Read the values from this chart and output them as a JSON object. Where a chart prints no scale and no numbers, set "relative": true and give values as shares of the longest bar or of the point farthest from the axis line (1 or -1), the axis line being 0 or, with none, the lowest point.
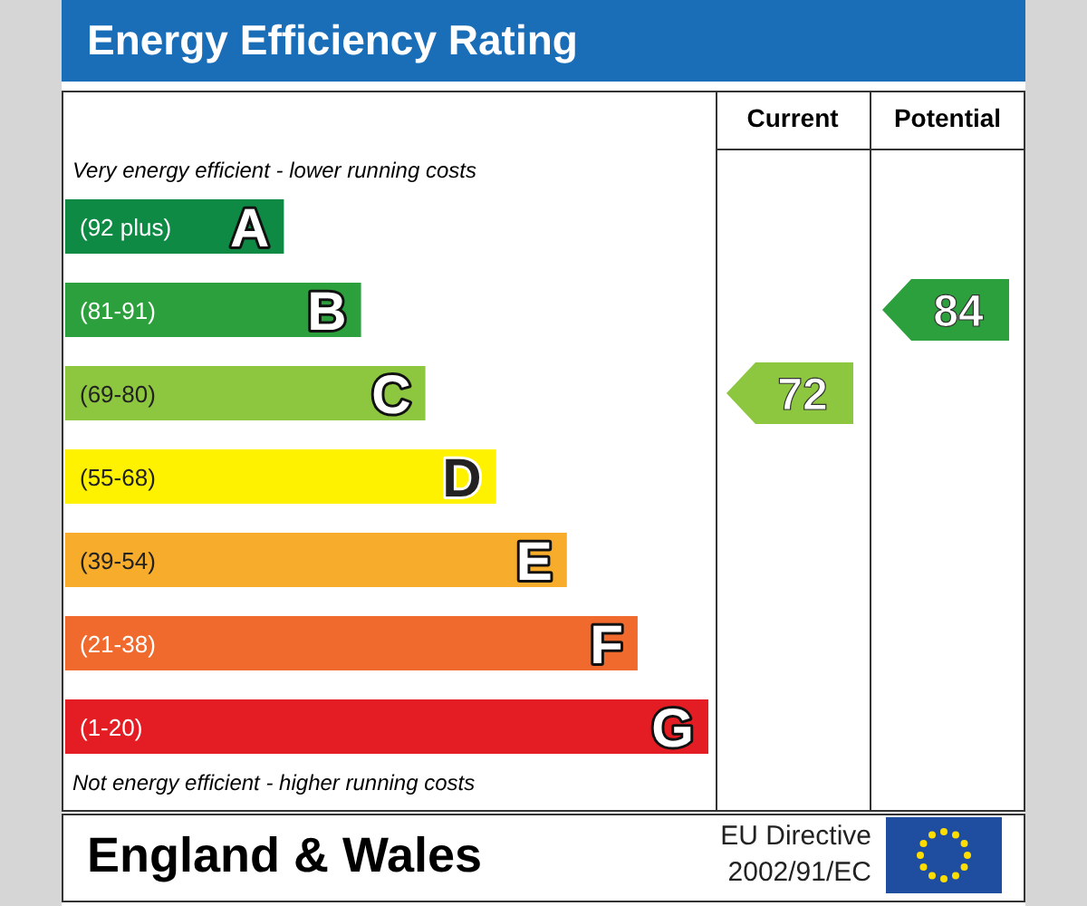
{
  "chart_data": {
    "type": "bar",
    "orientation": "horizontal",
    "relative": true,
    "title": "Energy Efficiency Rating",
    "values": [
      0.34,
      0.46,
      0.56,
      0.67,
      0.78,
      0.89,
      1
    ],
    "categories": [
      "(92 plus) A",
      "(81-91) B",
      "(69-80) C",
      "(55-68) D",
      "(39-54) E",
      "(21-38) F",
      "(1-20) G"
    ],
    "colors": [
      "#0f8a44",
      "#2ca03c",
      "#8dc63f",
      "#fff200",
      "#f7ad2b",
      "#ef6a2c",
      "#e31d23"
    ],
    "annotations": [
      "Very energy efficient - lower running costs",
      "Not energy efficient - higher running costs",
      "Current",
      "Potential",
      "72",
      "84",
      "England & Wales",
      "EU Directive",
      "2002/91/EC"
    ]
  }
}
